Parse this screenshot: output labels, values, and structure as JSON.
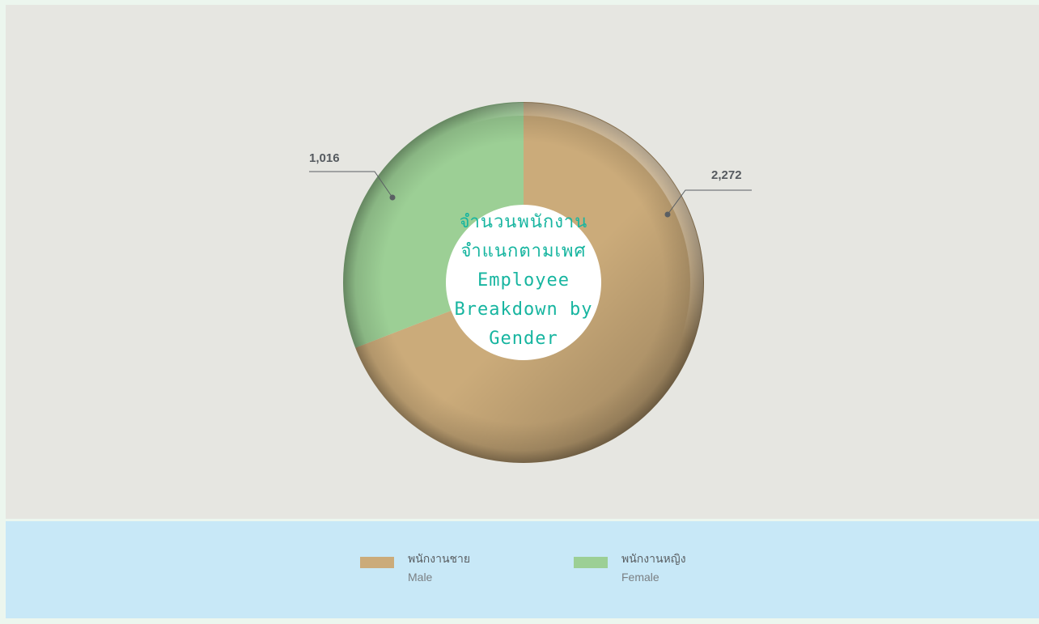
{
  "chart_data": {
    "type": "pie",
    "title_lines": [
      "จำนวนพนักงาน",
      "จำแนกตามเพศ",
      "Employee",
      "Breakdown by",
      "Gender"
    ],
    "categories": [
      "พนักงานชาย Male",
      "พนักงานหญิง Female"
    ],
    "values": [
      2272,
      1016
    ],
    "value_labels": [
      "2,272",
      "1,016"
    ],
    "colors": [
      "#cbab7a",
      "#9ccf95"
    ],
    "legend_position": "bottom",
    "donut": true
  },
  "legend": {
    "items": [
      {
        "th": "พนักงานชาย",
        "en": "Male",
        "color": "#cbab7a"
      },
      {
        "th": "พนักงานหญิง",
        "en": "Female",
        "color": "#9ccf95"
      }
    ]
  },
  "colors": {
    "chart_background": "#e6e6e1",
    "legend_background": "#c8e8f7",
    "title_color": "#17b5a0",
    "label_color": "#555a5f"
  }
}
